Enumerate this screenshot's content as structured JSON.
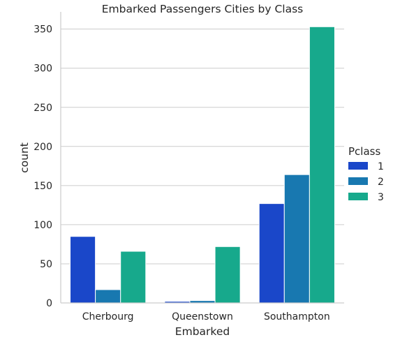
{
  "chart_data": {
    "type": "bar",
    "title": "Embarked Passengers Cities by Class",
    "xlabel": "Embarked",
    "ylabel": "count",
    "categories": [
      "Cherbourg",
      "Queenstown",
      "Southampton"
    ],
    "ylim": [
      0,
      372
    ],
    "yticks": [
      0,
      50,
      100,
      150,
      200,
      250,
      300,
      350
    ],
    "grid": true,
    "legend": {
      "title": "Pclass",
      "placement": "center-right outside"
    },
    "series": [
      {
        "name": "1",
        "color": "#1a47c9",
        "values": [
          85,
          2,
          127
        ]
      },
      {
        "name": "2",
        "color": "#1878b0",
        "values": [
          17,
          3,
          164
        ]
      },
      {
        "name": "3",
        "color": "#17a98c",
        "values": [
          66,
          72,
          353
        ]
      }
    ]
  }
}
